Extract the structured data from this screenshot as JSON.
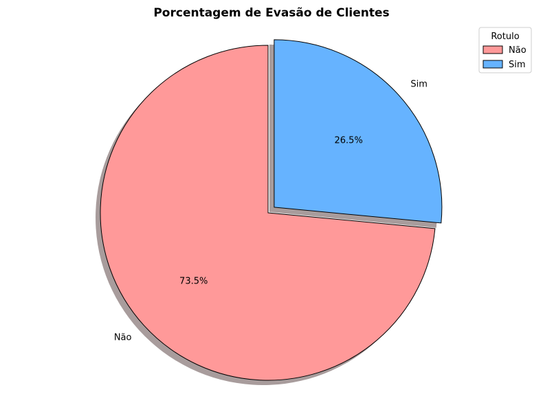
{
  "chart_data": {
    "type": "pie",
    "title": "Porcentagem de Evasão de Clientes",
    "categories": [
      "Não",
      "Sim"
    ],
    "values": [
      73.5,
      26.5
    ],
    "value_labels": [
      "73.5%",
      "26.5%"
    ],
    "colors": [
      "#ff9999",
      "#66b3ff"
    ],
    "exploded": [
      false,
      true
    ],
    "shadow": true,
    "start_angle_deg": 90,
    "direction": "counterclockwise",
    "legend": {
      "title": "Rotulo",
      "position": "top-right"
    }
  }
}
